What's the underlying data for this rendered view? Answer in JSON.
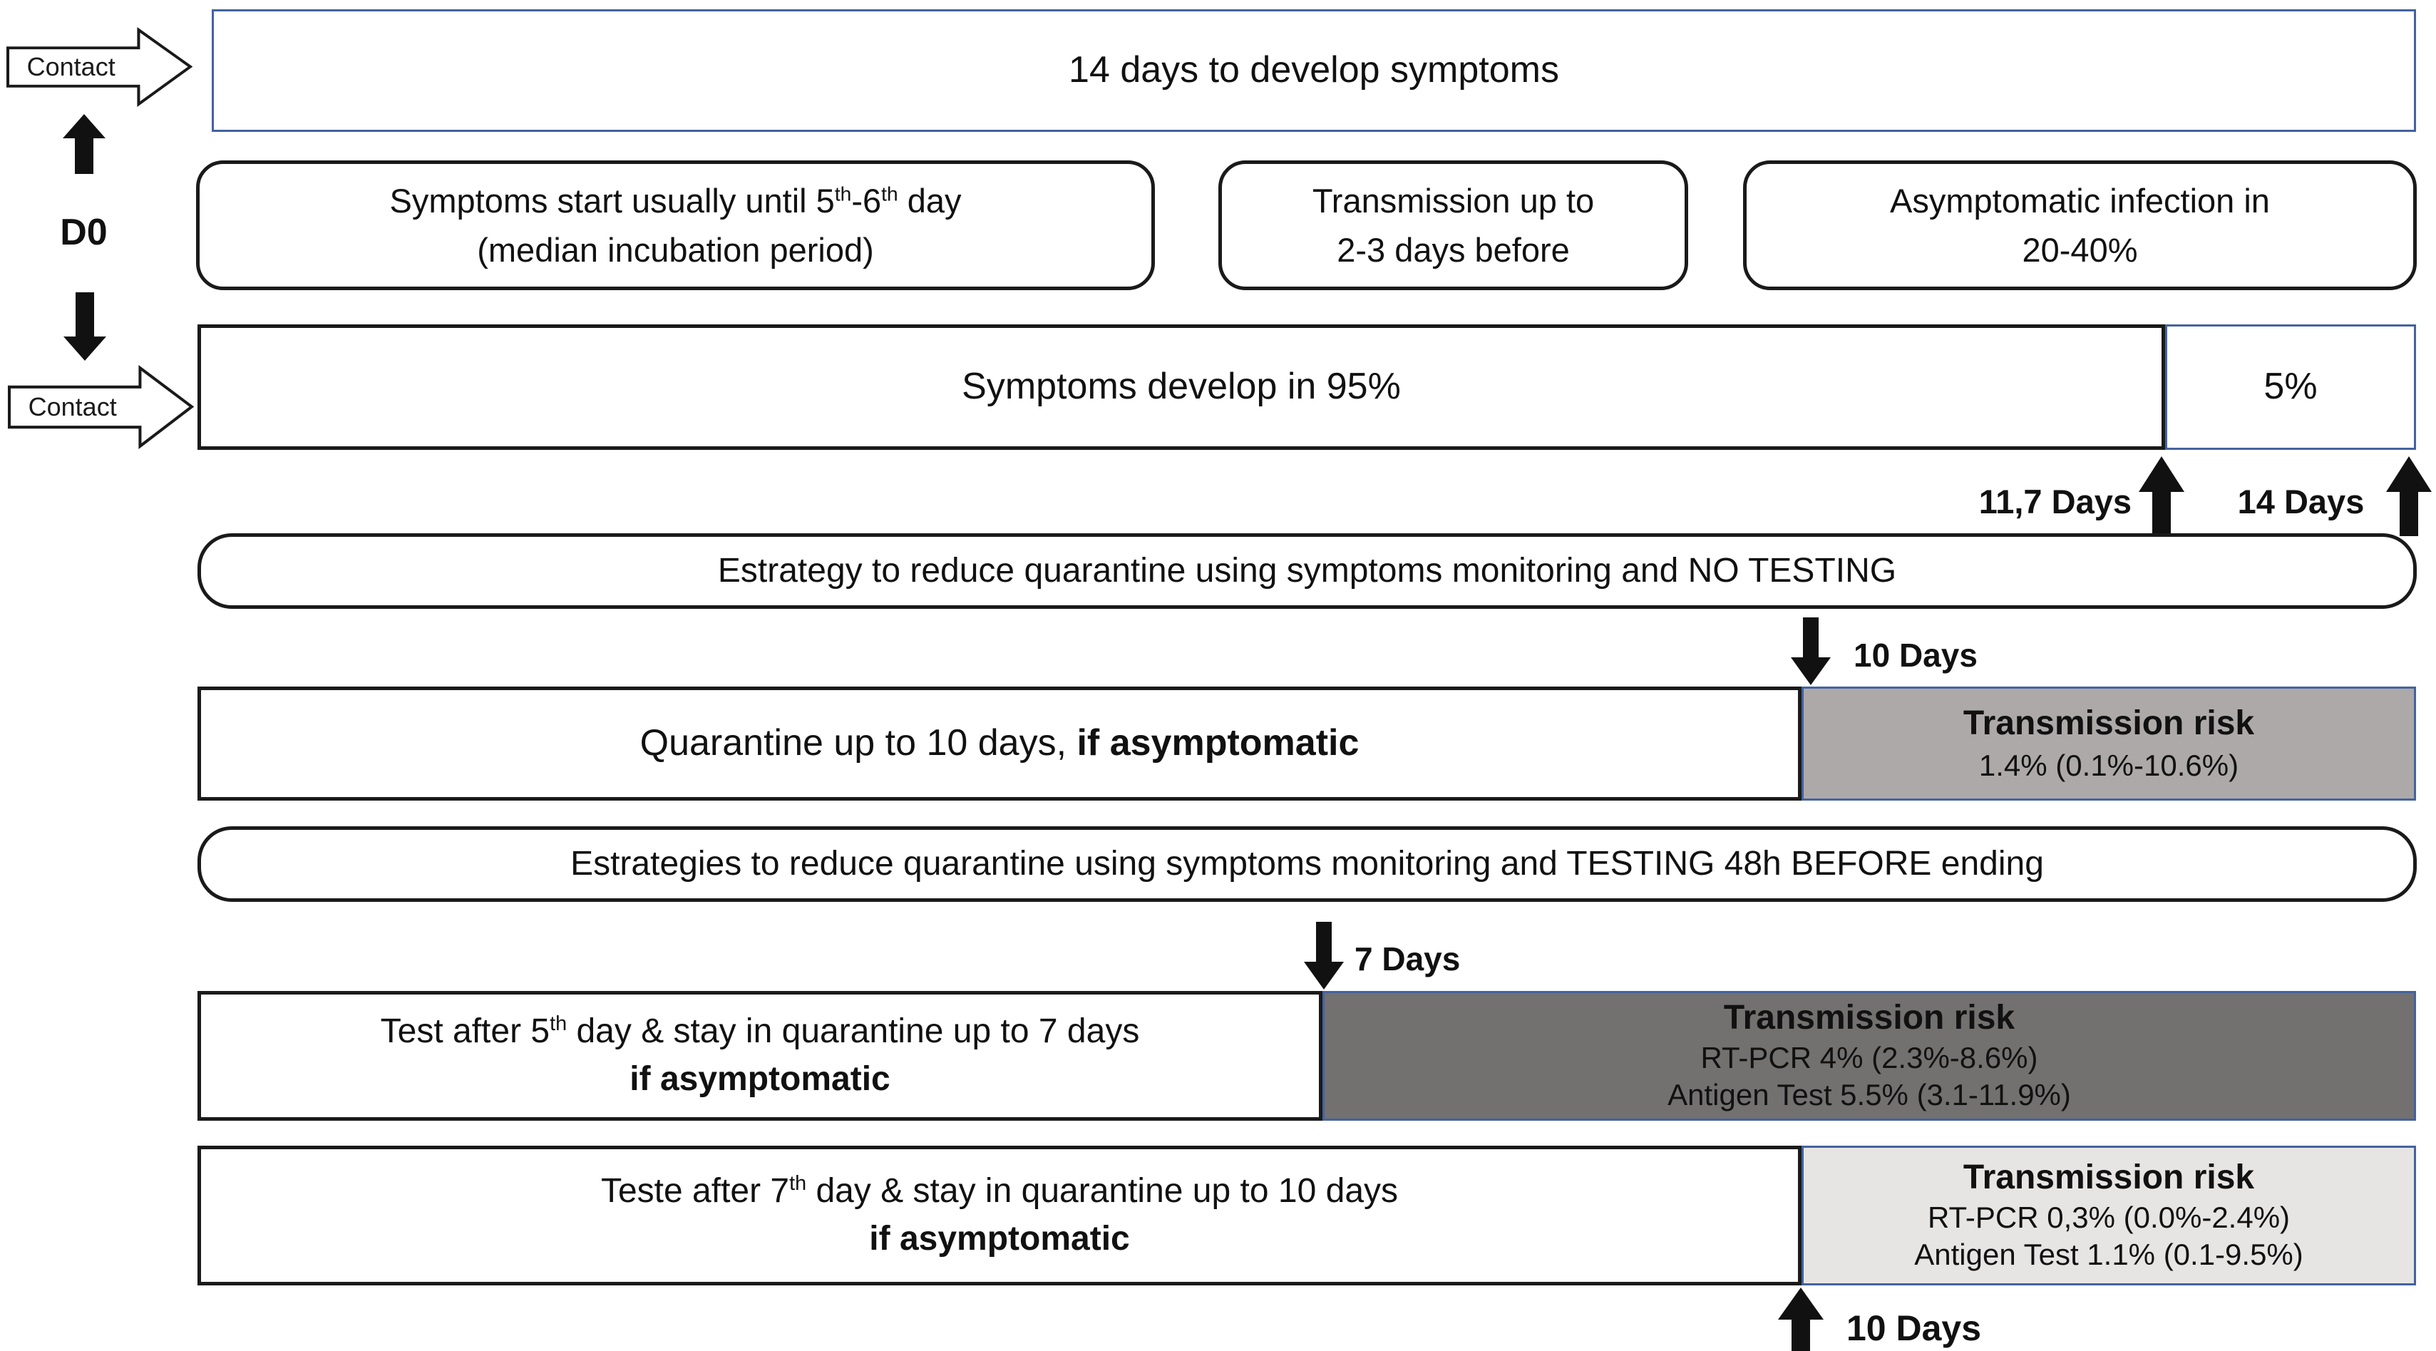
{
  "palette": {
    "blue": "#44629f",
    "grayMedium": "#ada9a8",
    "grayDark": "#737070",
    "grayLight": "#e7e5e4",
    "ink": "#111111"
  },
  "left_rail": {
    "contact_top": "Contact",
    "d0": "D0",
    "contact_bottom": "Contact"
  },
  "top_box": {
    "text": "14 days to develop symptoms"
  },
  "info_row": {
    "incubation": {
      "line1": [
        {
          "t": "Symptoms start usually until 5"
        },
        {
          "t": "th",
          "sup": true
        },
        {
          "t": "-6"
        },
        {
          "t": "th",
          "sup": true
        },
        {
          "t": " day"
        }
      ],
      "line2": "(median incubation period)"
    },
    "transmission": {
      "line1": "Transmission up to",
      "line2": "2-3 days before"
    },
    "asymptomatic": {
      "line1": "Asymptomatic infection in",
      "line2": "20-40%"
    }
  },
  "symptoms_row": {
    "main": "Symptoms develop in 95%",
    "tail": "5%"
  },
  "day_markers": {
    "d11_7": "11,7 Days",
    "d14": "14 Days"
  },
  "strategy_no_testing": {
    "title": "Estrategy to reduce quarantine using symptoms monitoring and NO TESTING",
    "marker_10d": "10 Days",
    "quarantine_box": [
      {
        "t": "Quarantine up to 10 days, "
      },
      {
        "t": "if asymptomatic",
        "b": true
      }
    ],
    "risk": {
      "title": "Transmission risk",
      "lines": [
        "1.4% (0.1%-10.6%)"
      ]
    }
  },
  "strategy_testing": {
    "title": "Estrategies to reduce quarantine using symptoms monitoring and TESTING 48h BEFORE ending",
    "option_7d": {
      "marker": "7 Days",
      "line1": [
        {
          "t": "Test after 5"
        },
        {
          "t": "th",
          "sup": true
        },
        {
          "t": " day & stay in quarantine up to 7 days"
        }
      ],
      "line2": [
        {
          "t": "if asymptomatic",
          "b": true
        }
      ],
      "risk": {
        "title": "Transmission risk",
        "lines": [
          "RT-PCR 4% (2.3%-8.6%)",
          "Antigen Test 5.5% (3.1-11.9%)"
        ]
      }
    },
    "option_10d": {
      "marker": "10 Days",
      "line1": [
        {
          "t": "Teste after 7"
        },
        {
          "t": "th",
          "sup": true
        },
        {
          "t": " day & stay in quarantine up to 10 days"
        }
      ],
      "line2": [
        {
          "t": "if asymptomatic",
          "b": true
        }
      ],
      "risk": {
        "title": "Transmission risk",
        "lines": [
          "RT-PCR 0,3% (0.0%-2.4%)",
          "Antigen Test 1.1% (0.1-9.5%)"
        ]
      }
    }
  }
}
